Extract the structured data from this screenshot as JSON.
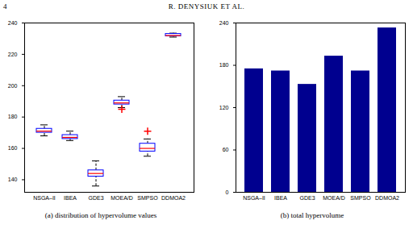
{
  "page": {
    "number": "4",
    "header": "R. DENYSIUK ET AL."
  },
  "chart_data": [
    {
      "type": "box",
      "caption": "(a) distribution of hypervolume values",
      "categories": [
        "NSGA–II",
        "IBEA",
        "GDE3",
        "MOEA/D",
        "SMPSO",
        "DDMOA2"
      ],
      "min": [
        168,
        165,
        136,
        186,
        155,
        231
      ],
      "q1": [
        170,
        166,
        142,
        188,
        158,
        231.5
      ],
      "median": [
        171,
        167,
        144,
        189,
        160,
        232
      ],
      "q3": [
        172.5,
        168.5,
        146,
        190.5,
        163,
        233
      ],
      "max": [
        175,
        171,
        152,
        193,
        166,
        233.5
      ],
      "outliers": [
        [],
        [],
        [],
        [
          185
        ],
        [
          171
        ],
        []
      ],
      "color": "#0000ff",
      "ylim": [
        132,
        240
      ],
      "yticks": [
        140,
        160,
        180,
        200,
        220,
        240
      ]
    },
    {
      "type": "bar",
      "caption": "(b) total hypervolume",
      "categories": [
        "NSGA–II",
        "IBEA",
        "GDE3",
        "MOEA/D",
        "SMPSO",
        "DDMOA2"
      ],
      "values": [
        175,
        172,
        153,
        193,
        172,
        233
      ],
      "color": "#00008f",
      "ylim": [
        0,
        240
      ],
      "yticks": [
        0,
        60,
        120,
        180,
        240
      ]
    }
  ]
}
